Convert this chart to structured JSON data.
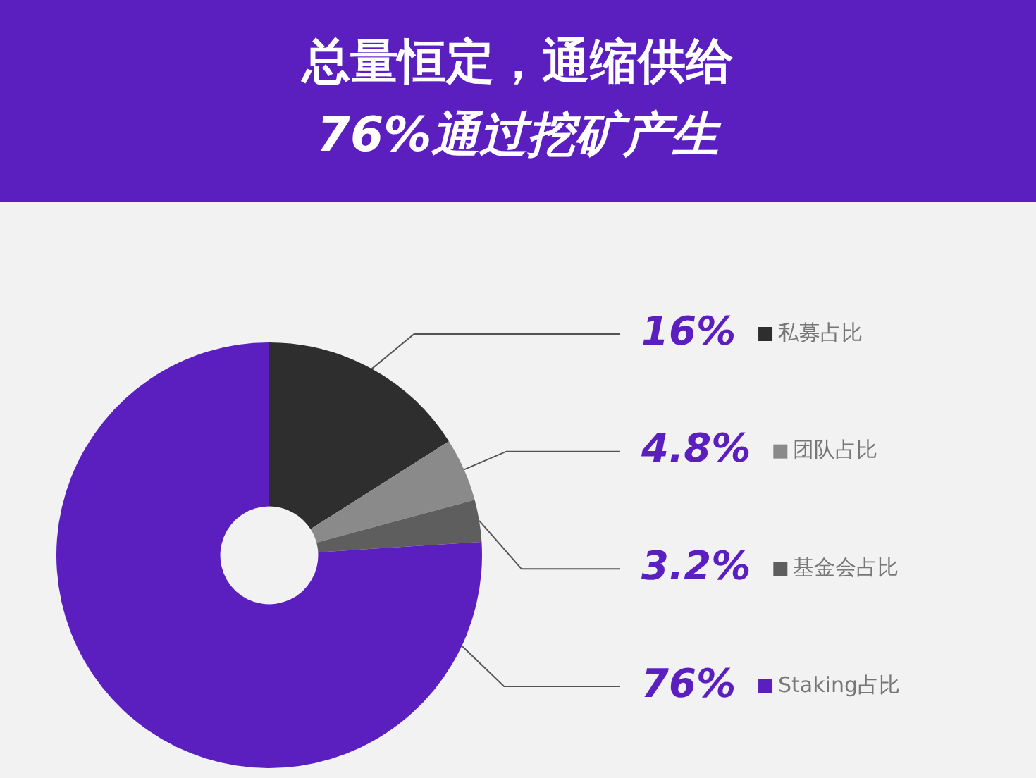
{
  "chart_data": {
    "type": "donut",
    "title": "总量恒定，通缩供给",
    "subtitle": "76%通过挖矿产生",
    "categories": [
      "私募占比",
      "团队占比",
      "基金会占比",
      "Staking占比"
    ],
    "values": [
      16,
      4.8,
      3.2,
      76
    ],
    "colors": [
      "#2e2e2e",
      "#8a8a8a",
      "#5e5e5e",
      "#5b1fc0"
    ],
    "legend": "right",
    "value_labels": [
      "16%",
      "4.8%",
      "3.2%",
      "76%"
    ]
  }
}
